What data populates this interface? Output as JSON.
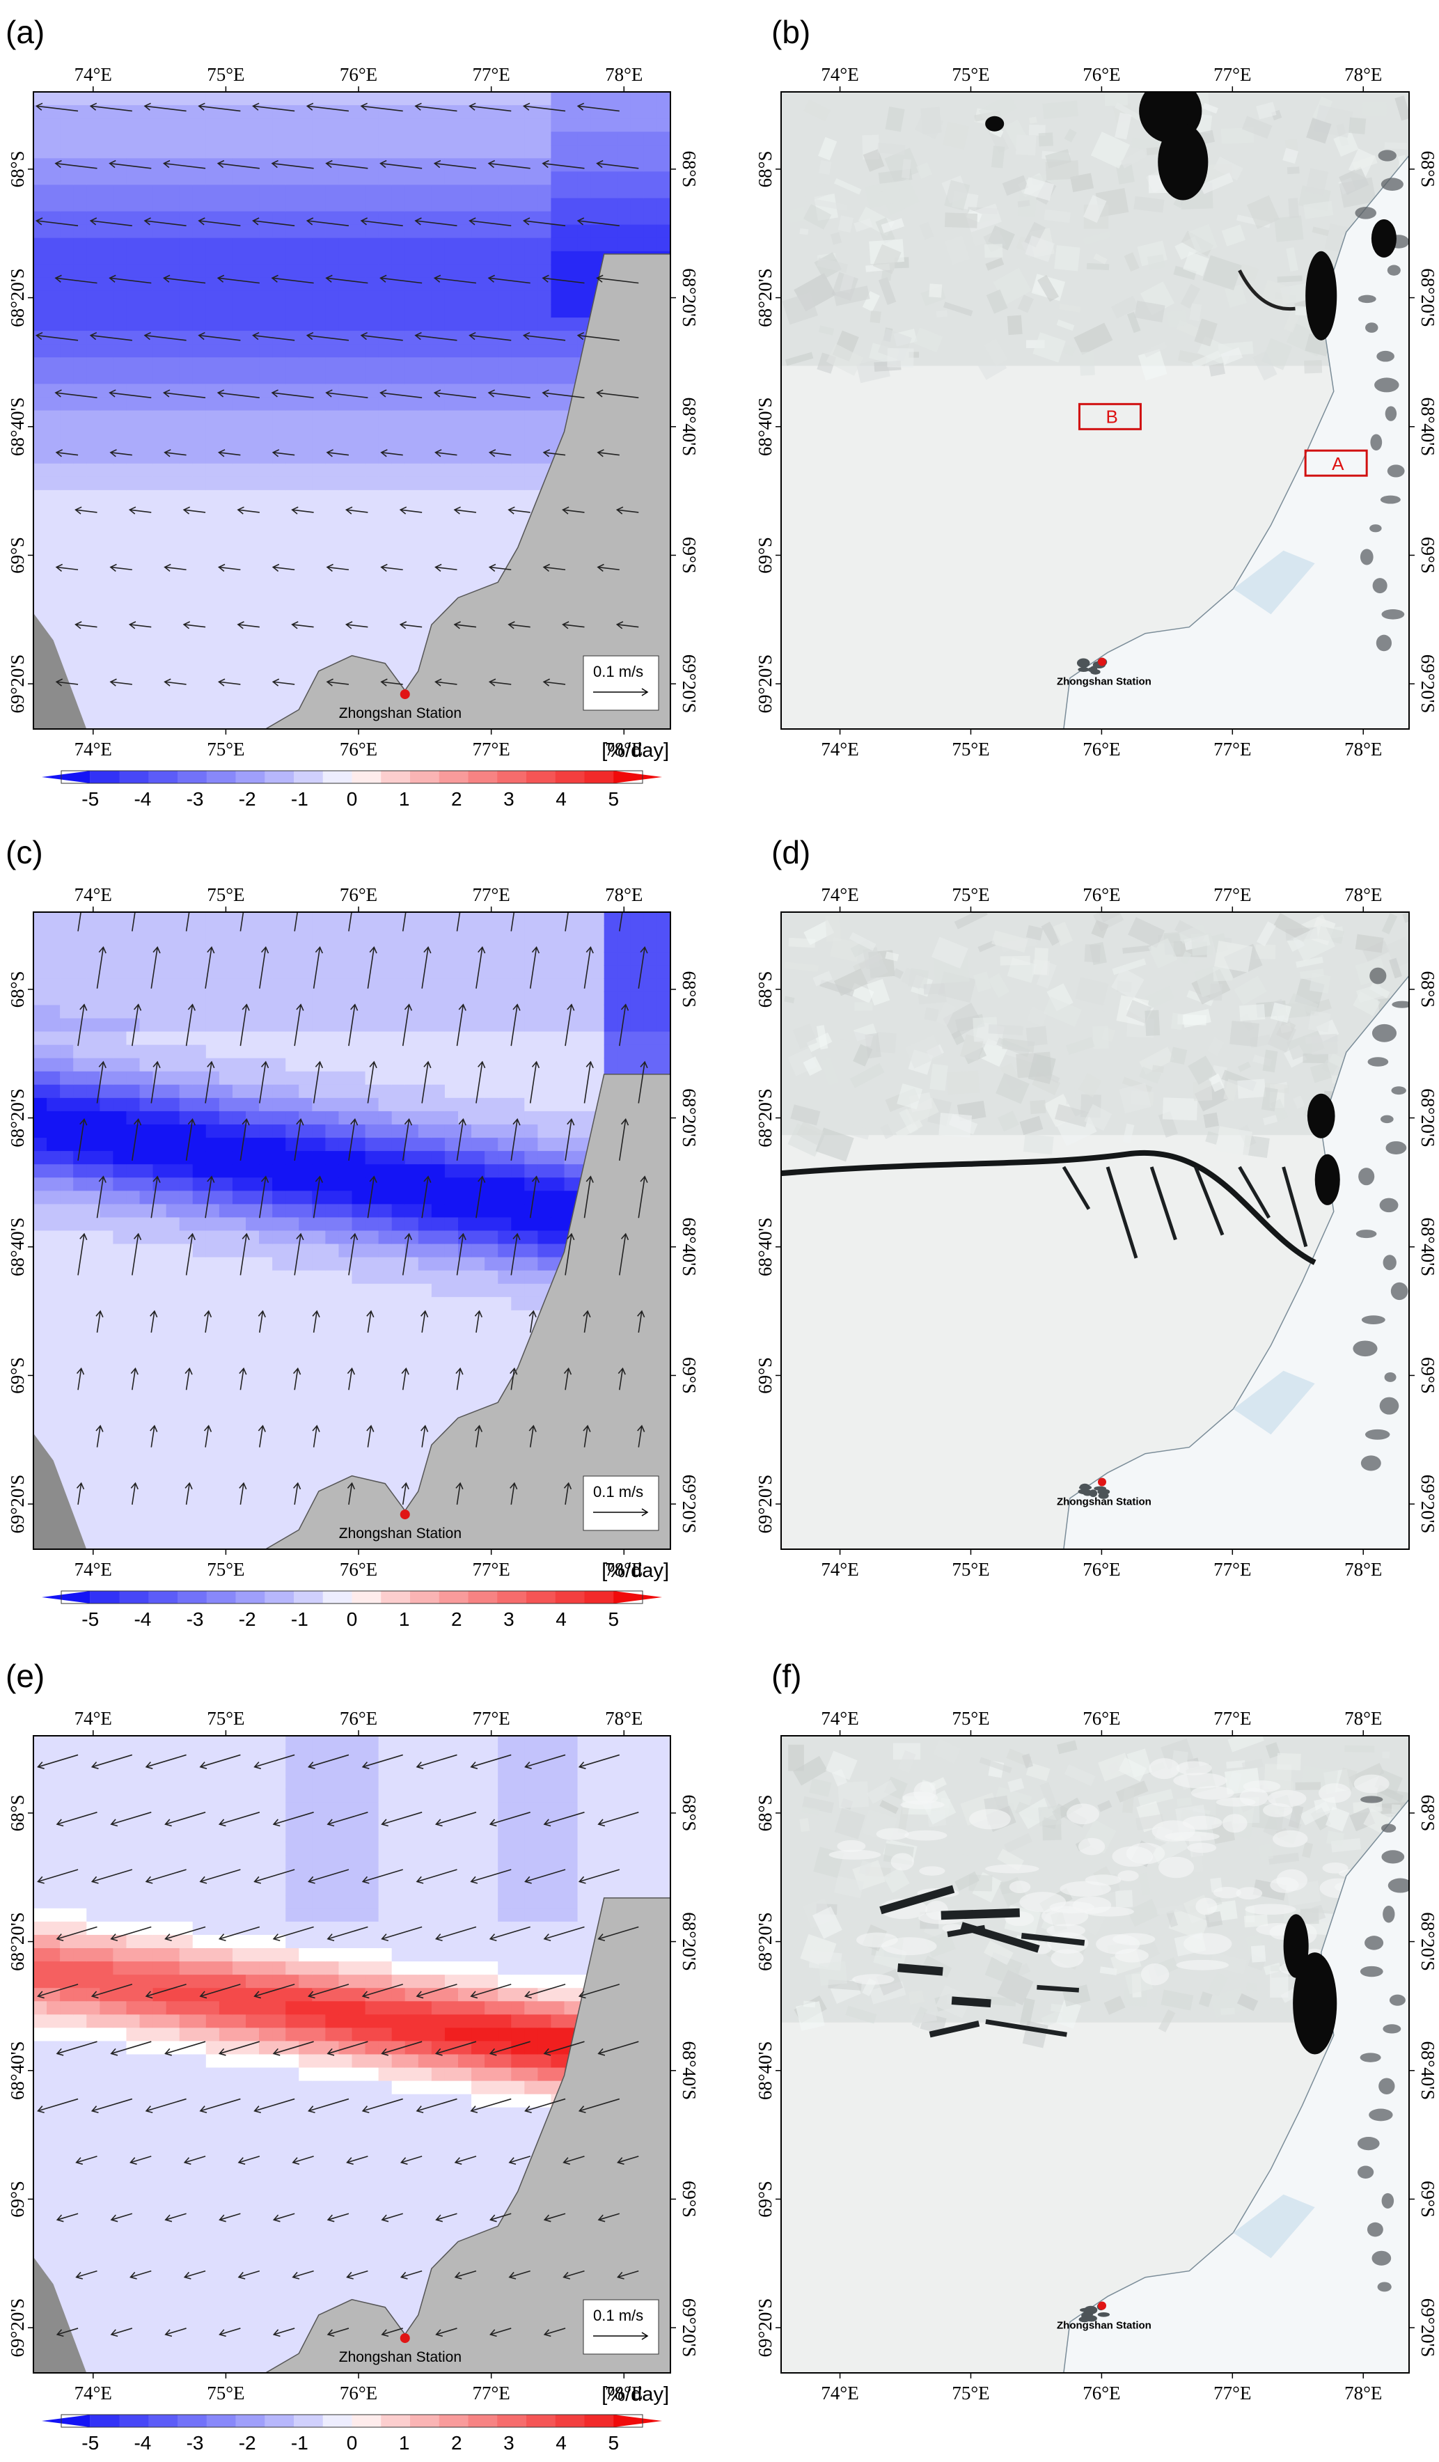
{
  "panels": {
    "a": {
      "label": "(a)",
      "type": "flux",
      "wind": [
        -1,
        0.12
      ]
    },
    "b": {
      "label": "(b)",
      "type": "satellite",
      "variant": "b"
    },
    "c": {
      "label": "(c)",
      "type": "flux",
      "wind": [
        0.15,
        1
      ]
    },
    "d": {
      "label": "(d)",
      "type": "satellite",
      "variant": "d"
    },
    "e": {
      "label": "(e)",
      "type": "flux",
      "wind": [
        -1,
        -0.3
      ]
    },
    "f": {
      "label": "(f)",
      "type": "satellite",
      "variant": "f"
    }
  },
  "axes": {
    "lon_ticks": [
      "74°E",
      "75°E",
      "76°E",
      "77°E",
      "78°E"
    ],
    "lat_ticks": [
      "68°S",
      "68°20'S",
      "68°40'S",
      "69°S",
      "69°20'S"
    ]
  },
  "station": {
    "name": "Zhongshan Station"
  },
  "scale_arrow": {
    "label": "0.1 m/s"
  },
  "colorbar": {
    "unit": "[%/day]",
    "ticks": [
      "-5",
      "-4",
      "-3",
      "-2",
      "-1",
      "0",
      "1",
      "2",
      "3",
      "4",
      "5"
    ],
    "range": [
      -5,
      5
    ]
  },
  "boxes": [
    {
      "label": "B"
    },
    {
      "label": "A"
    }
  ],
  "colors": {
    "station_dot": "#e01515",
    "land": "#b8b8b8",
    "land_dark": "#8c8c8c",
    "box": "#d11111",
    "open_water": "#0a0a0a"
  }
}
